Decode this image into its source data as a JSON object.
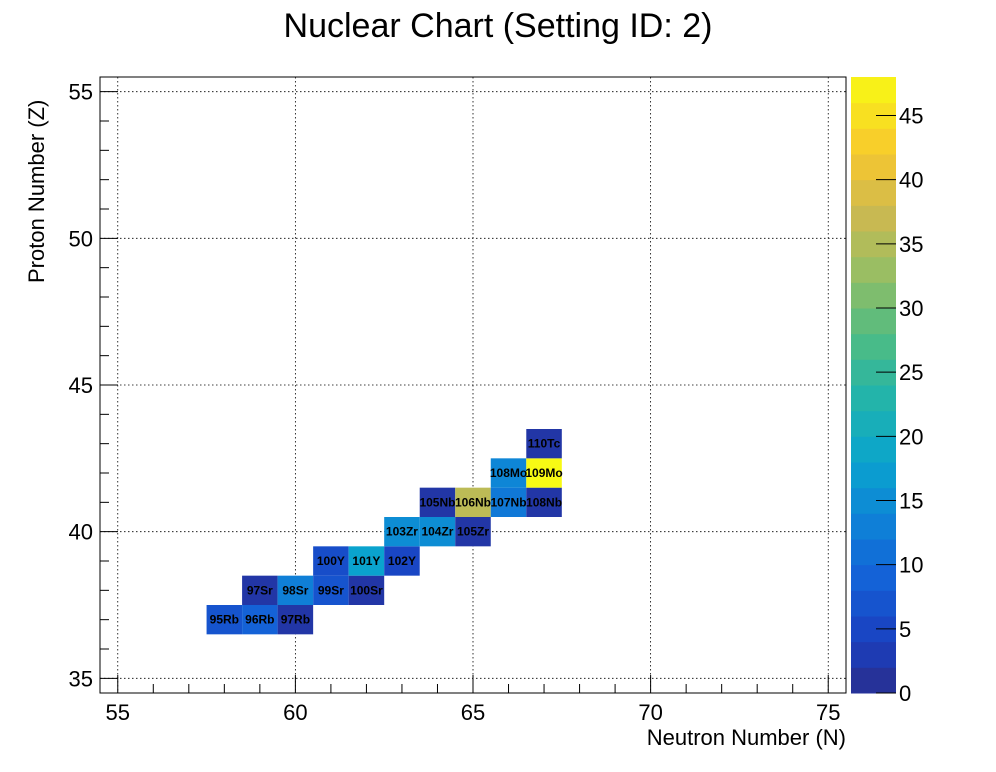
{
  "chart_data": {
    "type": "heatmap",
    "title": "Nuclear Chart (Setting ID: 2)",
    "xlabel": "Neutron Number (N)",
    "ylabel": "Proton Number (Z)",
    "xlim": [
      54.5,
      75.5
    ],
    "ylim": [
      34.5,
      55.5
    ],
    "x_ticks": [
      55,
      60,
      65,
      70,
      75
    ],
    "y_ticks": [
      35,
      40,
      45,
      50,
      55
    ],
    "colorbar": {
      "min": 0,
      "max": 48,
      "ticks": [
        0,
        5,
        10,
        15,
        20,
        25,
        30,
        35,
        40,
        45
      ],
      "palette": "parula"
    },
    "grid": true,
    "cells": [
      {
        "label": "95Rb",
        "n": 58,
        "z": 37,
        "value": 7
      },
      {
        "label": "96Rb",
        "n": 59,
        "z": 37,
        "value": 9
      },
      {
        "label": "97Rb",
        "n": 60,
        "z": 37,
        "value": 2
      },
      {
        "label": "97Sr",
        "n": 59,
        "z": 38,
        "value": 2
      },
      {
        "label": "98Sr",
        "n": 60,
        "z": 38,
        "value": 13
      },
      {
        "label": "99Sr",
        "n": 61,
        "z": 38,
        "value": 7
      },
      {
        "label": "100Sr",
        "n": 62,
        "z": 38,
        "value": 2
      },
      {
        "label": "100Y",
        "n": 61,
        "z": 39,
        "value": 6
      },
      {
        "label": "101Y",
        "n": 62,
        "z": 39,
        "value": 18
      },
      {
        "label": "102Y",
        "n": 63,
        "z": 39,
        "value": 5
      },
      {
        "label": "103Zr",
        "n": 63,
        "z": 40,
        "value": 15
      },
      {
        "label": "104Zr",
        "n": 64,
        "z": 40,
        "value": 15
      },
      {
        "label": "105Zr",
        "n": 65,
        "z": 40,
        "value": 2
      },
      {
        "label": "105Nb",
        "n": 64,
        "z": 41,
        "value": 2
      },
      {
        "label": "106Nb",
        "n": 65,
        "z": 41,
        "value": 36
      },
      {
        "label": "107Nb",
        "n": 66,
        "z": 41,
        "value": 12
      },
      {
        "label": "108Nb",
        "n": 67,
        "z": 41,
        "value": 2
      },
      {
        "label": "108Mo",
        "n": 66,
        "z": 42,
        "value": 14
      },
      {
        "label": "109Mo",
        "n": 67,
        "z": 42,
        "value": 48
      },
      {
        "label": "110Tc",
        "n": 67,
        "z": 43,
        "value": 2
      }
    ]
  }
}
